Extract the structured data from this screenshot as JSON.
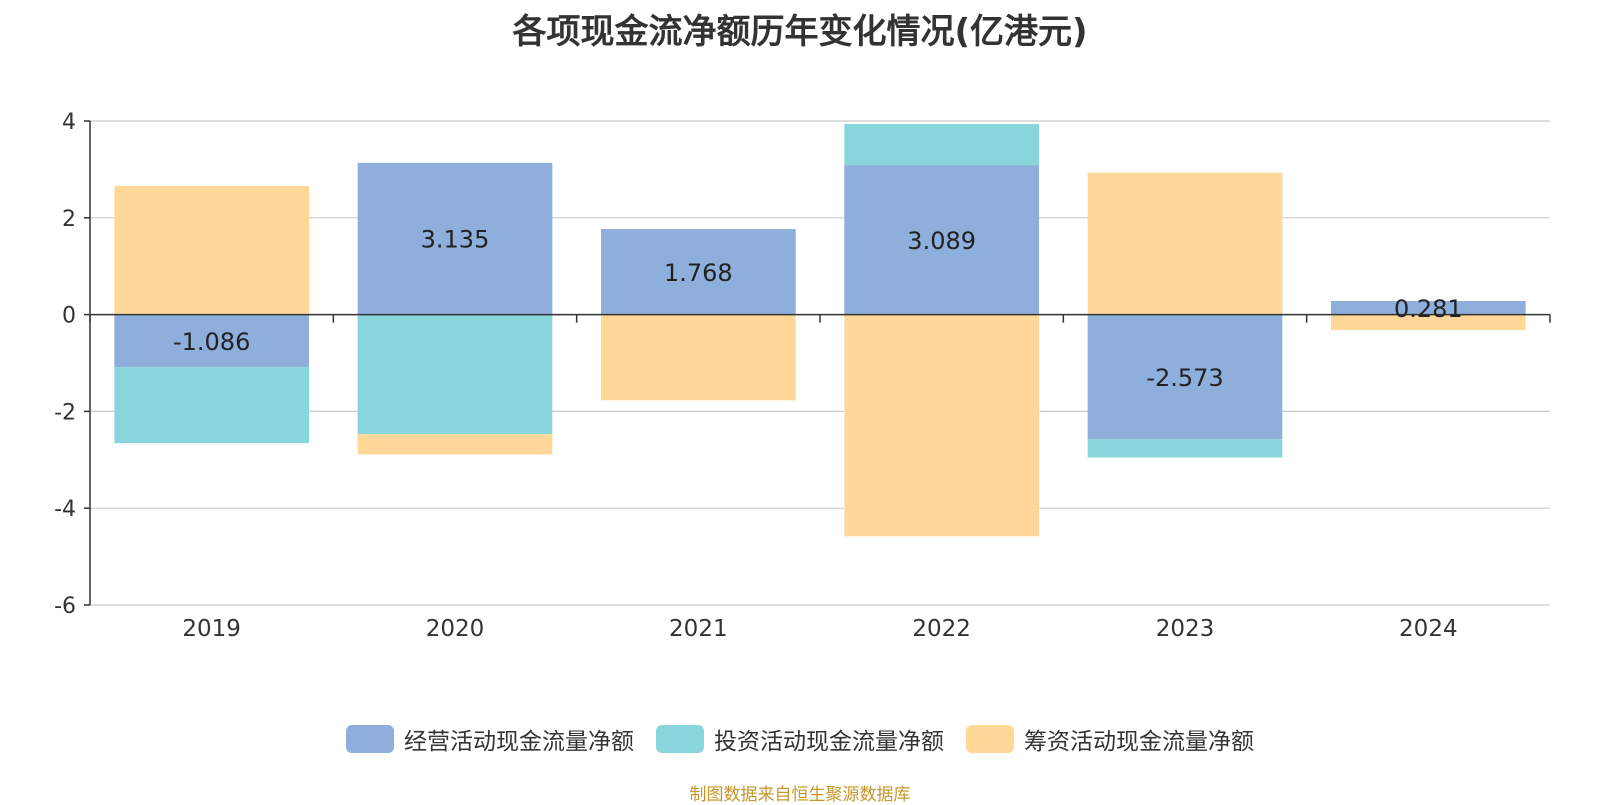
{
  "chart_data": {
    "type": "bar",
    "stacked": true,
    "title": "各项现金流净额历年变化情况(亿港元)",
    "categories": [
      "2019",
      "2020",
      "2021",
      "2022",
      "2023",
      "2024"
    ],
    "ylim": [
      -6,
      4
    ],
    "yticks": [
      4,
      2,
      0,
      -2,
      -4,
      -6
    ],
    "grid": true,
    "legend_position": "bottom",
    "series": [
      {
        "name": "经营活动现金流量净额",
        "color": "#8eaedb",
        "values": [
          -1.086,
          3.135,
          1.768,
          3.089,
          -2.573,
          0.281
        ],
        "labels": [
          "-1.086",
          "3.135",
          "1.768",
          "3.089",
          "-2.573",
          "0.281"
        ]
      },
      {
        "name": "投资活动现金流量净额",
        "color": "#88d6db",
        "values": [
          -1.57,
          -2.47,
          0.0,
          0.85,
          -0.38,
          0.0
        ]
      },
      {
        "name": "筹资活动现金流量净额",
        "color": "#ffd899",
        "values": [
          2.66,
          -0.42,
          -1.77,
          -4.58,
          2.93,
          -0.32
        ]
      }
    ]
  },
  "source_text": "制图数据来自恒生聚源数据库",
  "source_color": "#c8962a"
}
